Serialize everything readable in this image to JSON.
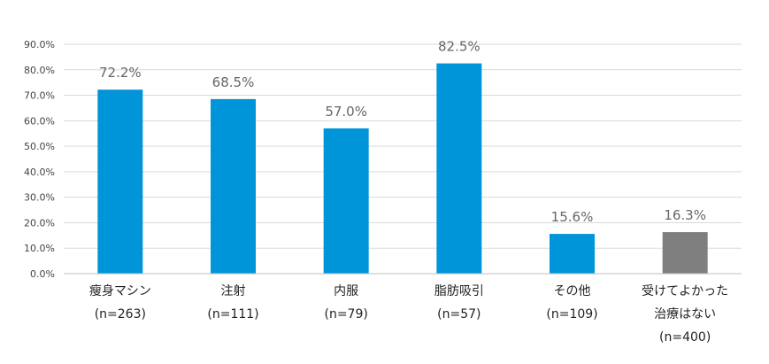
{
  "chart_data": {
    "type": "bar",
    "categories": [
      {
        "lines": [
          "瘦身マシン",
          "(n=263)"
        ]
      },
      {
        "lines": [
          "注射",
          "(n=111)"
        ]
      },
      {
        "lines": [
          "内服",
          "(n=79)"
        ]
      },
      {
        "lines": [
          "脂肪吸引",
          "(n=57)"
        ]
      },
      {
        "lines": [
          "その他",
          "(n=109)"
        ]
      },
      {
        "lines": [
          "受けてよかった",
          "治療はない",
          "(n=400)"
        ]
      }
    ],
    "values": [
      72.2,
      68.5,
      57.0,
      82.5,
      15.6,
      16.3
    ],
    "data_labels": [
      "72.2%",
      "68.5%",
      "57.0%",
      "82.5%",
      "15.6%",
      "16.3%"
    ],
    "bar_colors": [
      "#0095d9",
      "#0095d9",
      "#0095d9",
      "#0095d9",
      "#0095d9",
      "#7f7f7f"
    ],
    "ylim": [
      0,
      90
    ],
    "ytick_values": [
      0,
      10,
      20,
      30,
      40,
      50,
      60,
      70,
      80,
      90
    ],
    "ytick_labels": [
      "0.0%",
      "10.0%",
      "20.0%",
      "30.0%",
      "40.0%",
      "50.0%",
      "60.0%",
      "70.0%",
      "80.0%",
      "90.0%"
    ],
    "grid": true,
    "legend": "none",
    "title": "",
    "xlabel": "",
    "ylabel": ""
  }
}
